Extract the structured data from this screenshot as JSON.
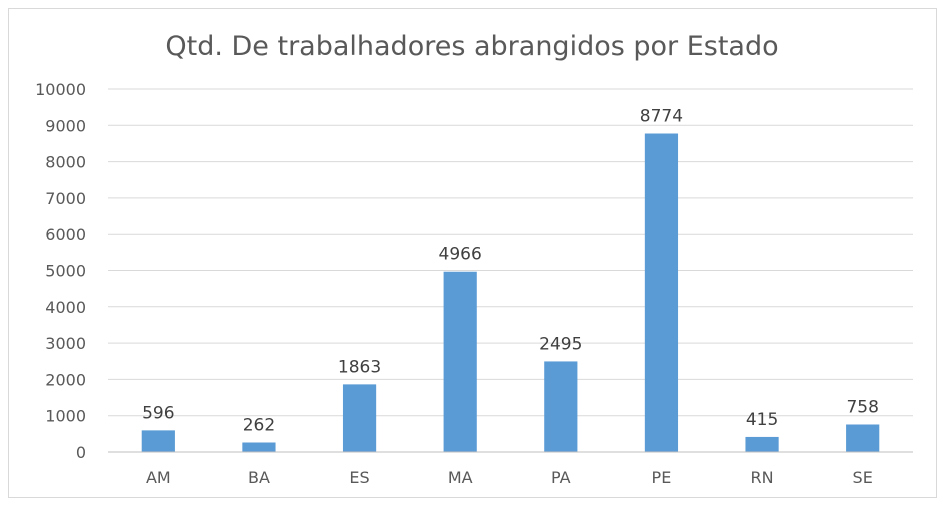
{
  "chart_data": {
    "type": "bar",
    "title": "Qtd. De trabalhadores abrangidos por Estado",
    "xlabel": "",
    "ylabel": "",
    "categories": [
      "AM",
      "BA",
      "ES",
      "MA",
      "PA",
      "PE",
      "RN",
      "SE"
    ],
    "values": [
      596,
      262,
      1863,
      4966,
      2495,
      8774,
      415,
      758
    ],
    "data_labels": [
      "596",
      "262",
      "1863",
      "4966",
      "2495",
      "8774",
      "415",
      "758"
    ],
    "ylim": [
      0,
      10000
    ],
    "yticks": [
      "0",
      "1000",
      "2000",
      "3000",
      "4000",
      "5000",
      "6000",
      "7000",
      "8000",
      "9000",
      "10000"
    ],
    "grid": true,
    "legend": "none",
    "bar_color": "#5b9bd5"
  }
}
